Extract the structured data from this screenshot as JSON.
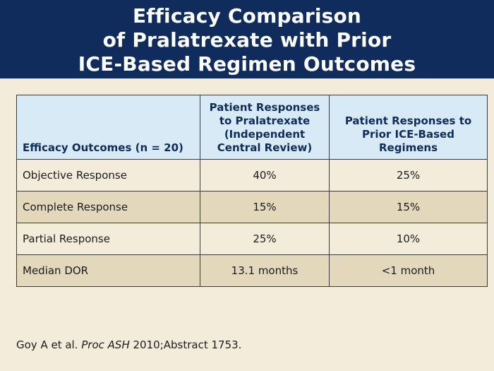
{
  "title": {
    "lines": [
      "Efficacy Comparison",
      "of Pralatrexate with Prior",
      "ICE-Based Regimen Outcomes"
    ]
  },
  "table": {
    "headers": [
      "Efficacy Outcomes (n = 20)",
      "Patient Responses to Pralatrexate (Independent Central Review)",
      "Patient Responses to Prior ICE-Based Regimens"
    ],
    "rows": [
      [
        "Objective Response",
        "40%",
        "25%"
      ],
      [
        "Complete Response",
        "15%",
        "15%"
      ],
      [
        "Partial Response",
        "25%",
        "10%"
      ],
      [
        "Median DOR",
        "13.1 months",
        "<1 month"
      ]
    ]
  },
  "citation": {
    "authors": "Goy A et al.",
    "journal": "Proc ASH",
    "rest": "2010;Abstract 1753."
  },
  "colors": {
    "title_band": "#0f2c5c",
    "header_fill": "#d8eaf5",
    "row_light": "#f3ecdb",
    "row_dark": "#e3d8bb"
  }
}
